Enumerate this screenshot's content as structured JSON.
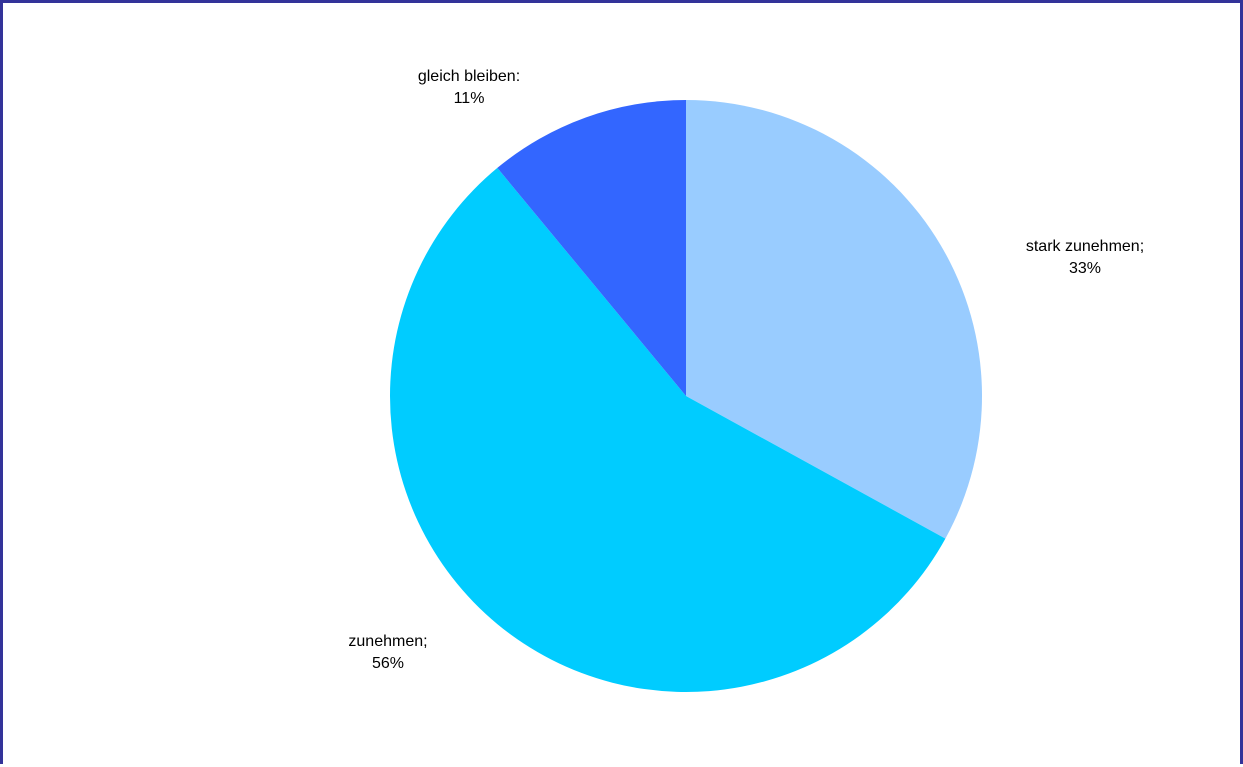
{
  "chart_data": {
    "type": "pie",
    "title": "",
    "slices": [
      {
        "name": "stark zunehmen",
        "value": 33,
        "label_line1": "stark zunehmen;",
        "label_line2": "33%",
        "color": "#99CCFF"
      },
      {
        "name": "zunehmen",
        "value": 56,
        "label_line1": "zunehmen;",
        "label_line2": "56%",
        "color": "#00CCFF"
      },
      {
        "name": "gleich bleiben",
        "value": 11,
        "label_line1": "gleich bleiben:",
        "label_line2": "11%",
        "color": "#3366FF"
      }
    ],
    "start_angle_deg": 0,
    "direction": "clockwise",
    "legend": "none"
  },
  "colors": {
    "frame_border": "#333399",
    "background": "#FFFFFF"
  }
}
